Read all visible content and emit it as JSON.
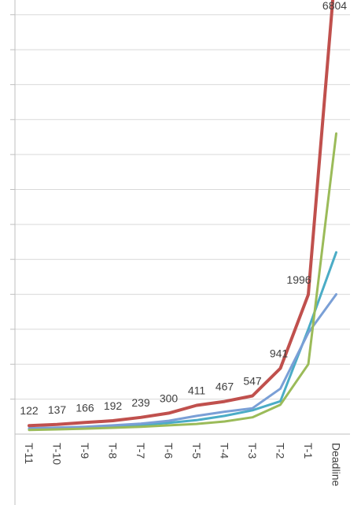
{
  "chart_data": {
    "type": "line",
    "title": "",
    "xlabel": "",
    "ylabel": "",
    "ylim": [
      0,
      7000
    ],
    "grid": true,
    "legend": "none",
    "categories": [
      "T-11",
      "T-10",
      "T-9",
      "T-8",
      "T-7",
      "T-6",
      "T-5",
      "T-4",
      "T-3",
      "T-2",
      "T-1",
      "Deadline"
    ],
    "series": [
      {
        "color": "#c0504d",
        "data_labels": true,
        "values": [
          122,
          137,
          166,
          192,
          239,
          300,
          411,
          467,
          547,
          941,
          1996,
          6804
        ]
      },
      {
        "color": "#9bbb59",
        "data_labels": false,
        "values": [
          60,
          68,
          78,
          90,
          105,
          125,
          145,
          180,
          240,
          420,
          1000,
          4300
        ]
      },
      {
        "color": "#4bacc6",
        "data_labels": false,
        "values": [
          70,
          80,
          95,
          112,
          130,
          160,
          200,
          260,
          340,
          470,
          1500,
          2600
        ]
      },
      {
        "color": "#7a9fd6",
        "data_labels": false,
        "values": [
          85,
          92,
          105,
          125,
          150,
          190,
          260,
          320,
          370,
          650,
          1450,
          2000
        ]
      }
    ]
  }
}
